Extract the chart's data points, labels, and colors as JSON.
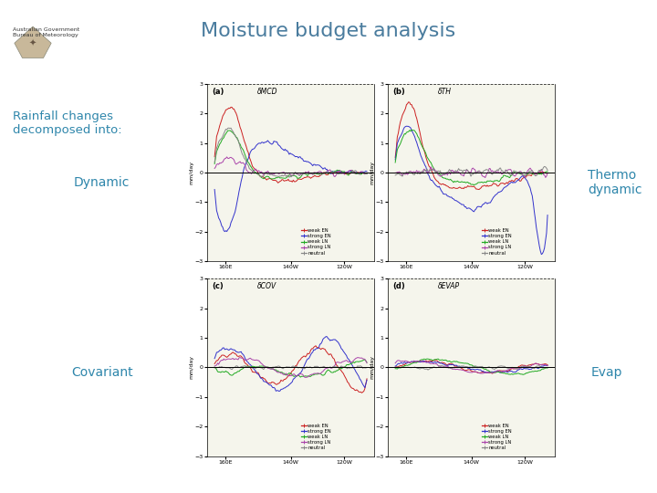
{
  "title": "Moisture budget analysis",
  "title_color": "#4a7c9e",
  "title_fontsize": 16,
  "background_color": "#ffffff",
  "header_bar_color": "#c5dce8",
  "left_label_color": "#2e86ab",
  "labels": {
    "top_left": "Rainfall changes\ndecomposed into:",
    "dynamic": "Dynamic",
    "thermodynamic": "Thermo\ndynamic",
    "covariant": "Covariant",
    "evap": "Evap"
  },
  "subplot_titles": [
    "δMCD",
    "δTH",
    "δCOV",
    "δEVAP"
  ],
  "subplot_labels": [
    "(a)",
    "(b)",
    "(c)",
    "(d)"
  ],
  "x_ticks": [
    "160E",
    "140W",
    "120W"
  ],
  "y_ticks": [
    -3,
    -2,
    -1,
    0,
    1,
    2,
    3
  ],
  "ylim": [
    -3,
    3
  ],
  "ylabel": "mm/day",
  "legend_labels": [
    "weak EN",
    "strong EN",
    "weak LN",
    "strong LN",
    "neutral"
  ],
  "line_colors": [
    "#cc2222",
    "#3333cc",
    "#22aa22",
    "#aa44aa",
    "#888888"
  ],
  "logo_text": "Australian Government\nBureau of Meteorology"
}
